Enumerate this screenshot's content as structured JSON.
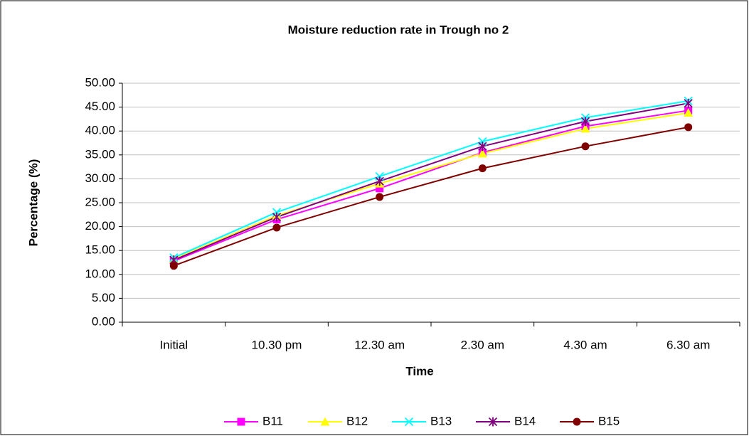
{
  "chart_data": {
    "type": "line",
    "title": "Moisture  reduction rate in Trough no 2",
    "x_label": "Time",
    "y_label": "Percentage (%)",
    "categories": [
      "Initial",
      "10.30 pm",
      "12.30 am",
      "2.30 am",
      "4.30 am",
      "6.30 am"
    ],
    "series": [
      {
        "name": "B11",
        "color": "#ff00ff",
        "marker": "square",
        "values": [
          12.8,
          21.5,
          28.0,
          35.5,
          41.0,
          44.3
        ]
      },
      {
        "name": "B12",
        "color": "#ffff00",
        "marker": "triangle",
        "values": [
          13.2,
          22.3,
          29.0,
          35.3,
          40.5,
          43.8
        ]
      },
      {
        "name": "B13",
        "color": "#00ffff",
        "marker": "x",
        "values": [
          13.5,
          23.0,
          30.5,
          37.8,
          42.8,
          46.3
        ]
      },
      {
        "name": "B14",
        "color": "#800080",
        "marker": "star",
        "values": [
          13.0,
          22.0,
          29.5,
          36.8,
          42.0,
          45.8
        ]
      },
      {
        "name": "B15",
        "color": "#800000",
        "marker": "circle",
        "values": [
          11.8,
          19.8,
          26.2,
          32.2,
          36.8,
          40.8
        ]
      }
    ],
    "ylim": [
      0,
      50
    ],
    "yticks": [
      {
        "value": 0,
        "label": "0.00"
      },
      {
        "value": 5,
        "label": "5.00"
      },
      {
        "value": 10,
        "label": "10.00"
      },
      {
        "value": 15,
        "label": "15.00"
      },
      {
        "value": 20,
        "label": "20.00"
      },
      {
        "value": 25,
        "label": "25.00"
      },
      {
        "value": 30,
        "label": "30.00"
      },
      {
        "value": 35,
        "label": "35.00"
      },
      {
        "value": 40,
        "label": "40.00"
      },
      {
        "value": 45,
        "label": "45.00"
      },
      {
        "value": 50,
        "label": "50.00"
      }
    ],
    "grid": true,
    "legend": "bottom"
  }
}
